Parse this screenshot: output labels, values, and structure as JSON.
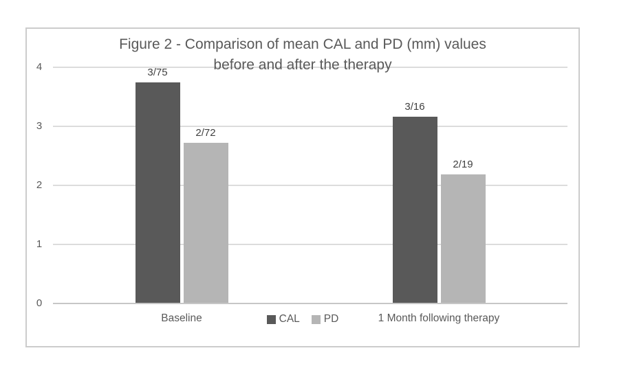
{
  "chart_data": {
    "type": "bar",
    "title": "Figure 2 - Comparison of mean CAL and PD (mm) values before and after the therapy",
    "title_lines": [
      "Figure 2 - Comparison of mean CAL and PD (mm) values",
      "before and after the therapy"
    ],
    "categories": [
      "Baseline",
      "1 Month following therapy"
    ],
    "series": [
      {
        "name": "CAL",
        "color": "#595959",
        "values": [
          3.75,
          3.16
        ],
        "data_labels": [
          "3/75",
          "3/16"
        ]
      },
      {
        "name": "PD",
        "color": "#b5b5b5",
        "values": [
          2.72,
          2.19
        ],
        "data_labels": [
          "2/72",
          "2/19"
        ]
      }
    ],
    "xlabel": "",
    "ylabel": "",
    "ylim": [
      0,
      4
    ],
    "yticks": [
      0,
      1,
      2,
      3,
      4
    ],
    "grid": true,
    "legend_position": "bottom-center"
  },
  "colors": {
    "gridline": "#dcdcdc",
    "axis_line": "#c6c6c6",
    "chart_border": "#cccccc",
    "title_text": "#595959",
    "axis_text": "#595959",
    "data_label_text": "#404040"
  }
}
